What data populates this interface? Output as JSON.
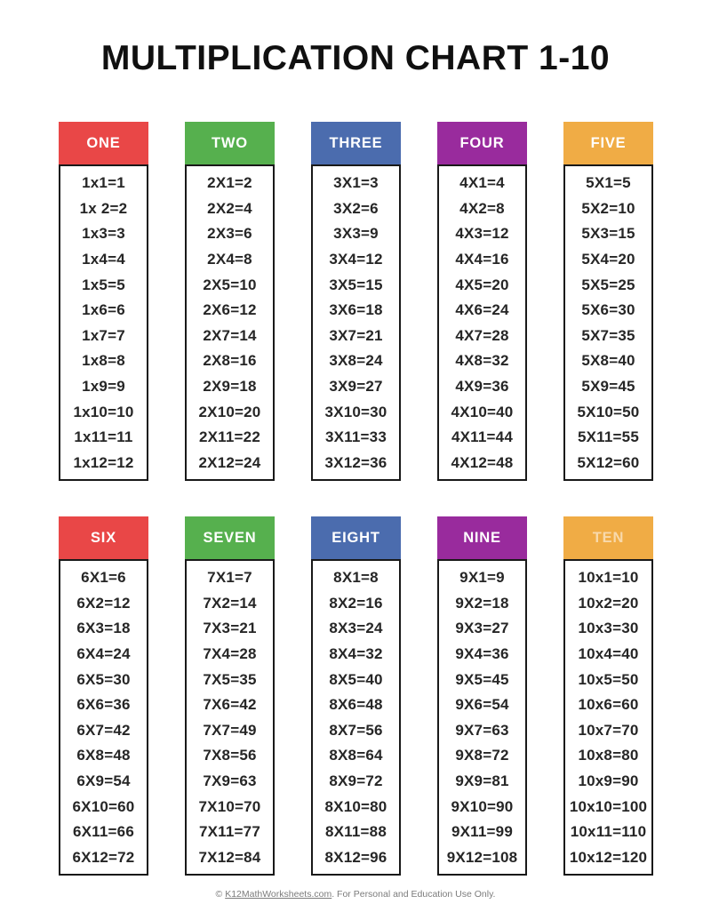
{
  "title": "MULTIPLICATION CHART 1-10",
  "palette": {
    "red": "#E94747",
    "green": "#56B04E",
    "blue": "#4B6CAE",
    "purple": "#992B9D",
    "orange": "#F0AC45",
    "border": "#191919",
    "text": "#262626",
    "footer_gray": "#7c7c7c"
  },
  "columns": [
    {
      "label": "ONE",
      "color": "#E94747",
      "muted_label": false,
      "facts": [
        "1x1=1",
        "1x 2=2",
        "1x3=3",
        "1x4=4",
        "1x5=5",
        "1x6=6",
        "1x7=7",
        "1x8=8",
        "1x9=9",
        "1x10=10",
        "1x11=11",
        "1x12=12"
      ]
    },
    {
      "label": "TWO",
      "color": "#56B04E",
      "muted_label": false,
      "facts": [
        "2X1=2",
        "2X2=4",
        "2X3=6",
        "2X4=8",
        "2X5=10",
        "2X6=12",
        "2X7=14",
        "2X8=16",
        "2X9=18",
        "2X10=20",
        "2X11=22",
        "2X12=24"
      ]
    },
    {
      "label": "THREE",
      "color": "#4B6CAE",
      "muted_label": false,
      "facts": [
        "3X1=3",
        "3X2=6",
        "3X3=9",
        "3X4=12",
        "3X5=15",
        "3X6=18",
        "3X7=21",
        "3X8=24",
        "3X9=27",
        "3X10=30",
        "3X11=33",
        "3X12=36"
      ]
    },
    {
      "label": "FOUR",
      "color": "#992B9D",
      "muted_label": false,
      "facts": [
        "4X1=4",
        "4X2=8",
        "4X3=12",
        "4X4=16",
        "4X5=20",
        "4X6=24",
        "4X7=28",
        "4X8=32",
        "4X9=36",
        "4X10=40",
        "4X11=44",
        "4X12=48"
      ]
    },
    {
      "label": "FIVE",
      "color": "#F0AC45",
      "muted_label": false,
      "facts": [
        "5X1=5",
        "5X2=10",
        "5X3=15",
        "5X4=20",
        "5X5=25",
        "5X6=30",
        "5X7=35",
        "5X8=40",
        "5X9=45",
        "5X10=50",
        "5X11=55",
        "5X12=60"
      ]
    },
    {
      "label": "SIX",
      "color": "#E94747",
      "muted_label": false,
      "facts": [
        "6X1=6",
        "6X2=12",
        "6X3=18",
        "6X4=24",
        "6X5=30",
        "6X6=36",
        "6X7=42",
        "6X8=48",
        "6X9=54",
        "6X10=60",
        "6X11=66",
        "6X12=72"
      ]
    },
    {
      "label": "SEVEN",
      "color": "#56B04E",
      "muted_label": false,
      "facts": [
        "7X1=7",
        "7X2=14",
        "7X3=21",
        "7X4=28",
        "7X5=35",
        "7X6=42",
        "7X7=49",
        "7X8=56",
        "7X9=63",
        "7X10=70",
        "7X11=77",
        "7X12=84"
      ]
    },
    {
      "label": "EIGHT",
      "color": "#4B6CAE",
      "muted_label": false,
      "facts": [
        "8X1=8",
        "8X2=16",
        "8X3=24",
        "8X4=32",
        "8X5=40",
        "8X6=48",
        "8X7=56",
        "8X8=64",
        "8X9=72",
        "8X10=80",
        "8X11=88",
        "8X12=96"
      ]
    },
    {
      "label": "NINE",
      "color": "#992B9D",
      "muted_label": false,
      "facts": [
        "9X1=9",
        "9X2=18",
        "9X3=27",
        "9X4=36",
        "9X5=45",
        "9X6=54",
        "9X7=63",
        "9X8=72",
        "9X9=81",
        "9X10=90",
        "9X11=99",
        "9X12=108"
      ]
    },
    {
      "label": "TEN",
      "color": "#F0AC45",
      "muted_label": true,
      "facts": [
        "10x1=10",
        "10x2=20",
        "10x3=30",
        "10x4=40",
        "10x5=50",
        "10x6=60",
        "10x7=70",
        "10x8=80",
        "10x9=90",
        "10x10=100",
        "10x11=110",
        "10x12=120"
      ]
    }
  ],
  "footer": {
    "prefix": "© ",
    "link_text": "K12MathWorksheets.com",
    "suffix": ". For Personal and Education Use Only."
  }
}
